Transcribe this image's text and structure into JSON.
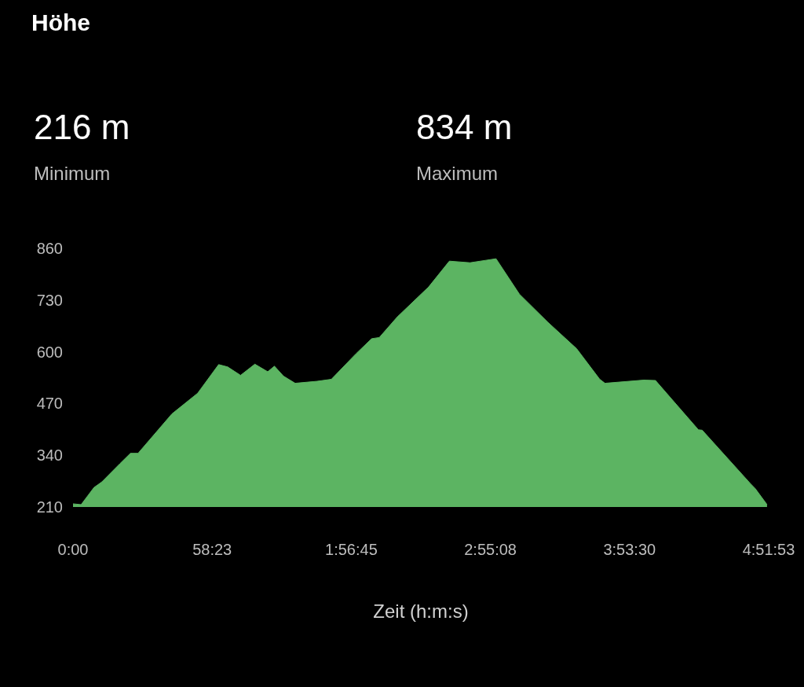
{
  "chart_data": {
    "type": "area",
    "title": "Höhe",
    "xlabel": "Zeit (h:m:s)",
    "annotations": [
      "216 m",
      "Minimum",
      "834 m",
      "Maximum"
    ],
    "series": [
      {
        "color": "#5cb462",
        "x": [
          0,
          3.4,
          8.8,
          12.1,
          19.7,
          24.1,
          27.3,
          41.5,
          52.3,
          61.1,
          64.9,
          70.3,
          76.3,
          81.7,
          84.5,
          88.3,
          93.2,
          102.4,
          108.4,
          118.7,
          125.3,
          128.5,
          136.1,
          149.2,
          157.9,
          166.6,
          177.5,
          187.3,
          199.3,
          211.3,
          221,
          223.2,
          239.5,
          244.4,
          262.4,
          264,
          284.2,
          286.3,
          291.2
        ],
        "values": [
          218,
          216,
          259,
          273,
          319,
          345,
          345,
          444,
          496,
          568,
          562,
          541,
          569,
          550,
          564,
          539,
          521,
          526,
          531,
          595,
          633,
          636,
          688,
          763,
          828,
          824,
          834,
          745,
          674,
          608,
          531,
          521,
          529,
          528,
          404,
          403,
          269,
          256,
          216
        ]
      }
    ],
    "xlim": [
      0,
      291.883
    ],
    "xticks": [
      {
        "value": 0,
        "label": "0:00"
      },
      {
        "value": 58.383,
        "label": "58:23"
      },
      {
        "value": 116.75,
        "label": "1:56:45"
      },
      {
        "value": 175.133,
        "label": "2:55:08"
      },
      {
        "value": 233.5,
        "label": "3:53:30"
      },
      {
        "value": 291.883,
        "label": "4:51:53"
      }
    ],
    "ylim": [
      210,
      860
    ],
    "yticks": [
      210,
      340,
      470,
      600,
      730,
      860
    ],
    "grid": false
  }
}
